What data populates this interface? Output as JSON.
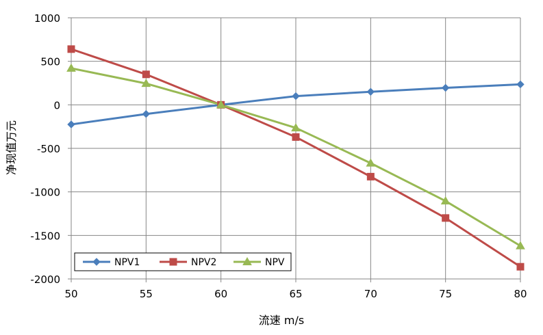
{
  "chart_data": {
    "type": "line",
    "title": "",
    "xlabel": "流速 m/s",
    "ylabel": "净现值万元",
    "x": [
      50,
      55,
      60,
      65,
      70,
      75,
      80
    ],
    "xlim": [
      50,
      80
    ],
    "ylim": [
      -2000,
      1000
    ],
    "x_ticks": [
      "50",
      "55",
      "60",
      "65",
      "70",
      "75",
      "80"
    ],
    "y_ticks": [
      "1000",
      "500",
      "0",
      "-500",
      "-1000",
      "-1500",
      "-2000"
    ],
    "grid": true,
    "legend_position": "bottom-left",
    "series": [
      {
        "name": "NPV1",
        "color": "#4A7EBB",
        "marker": "diamond",
        "values": [
          -225,
          -105,
          0,
          100,
          150,
          195,
          235
        ]
      },
      {
        "name": "NPV2",
        "color": "#BE4B48",
        "marker": "square",
        "values": [
          640,
          350,
          0,
          -370,
          -825,
          -1300,
          -1860
        ]
      },
      {
        "name": "NPV",
        "color": "#98B954",
        "marker": "triangle",
        "values": [
          420,
          245,
          0,
          -265,
          -670,
          -1105,
          -1620
        ]
      }
    ]
  }
}
